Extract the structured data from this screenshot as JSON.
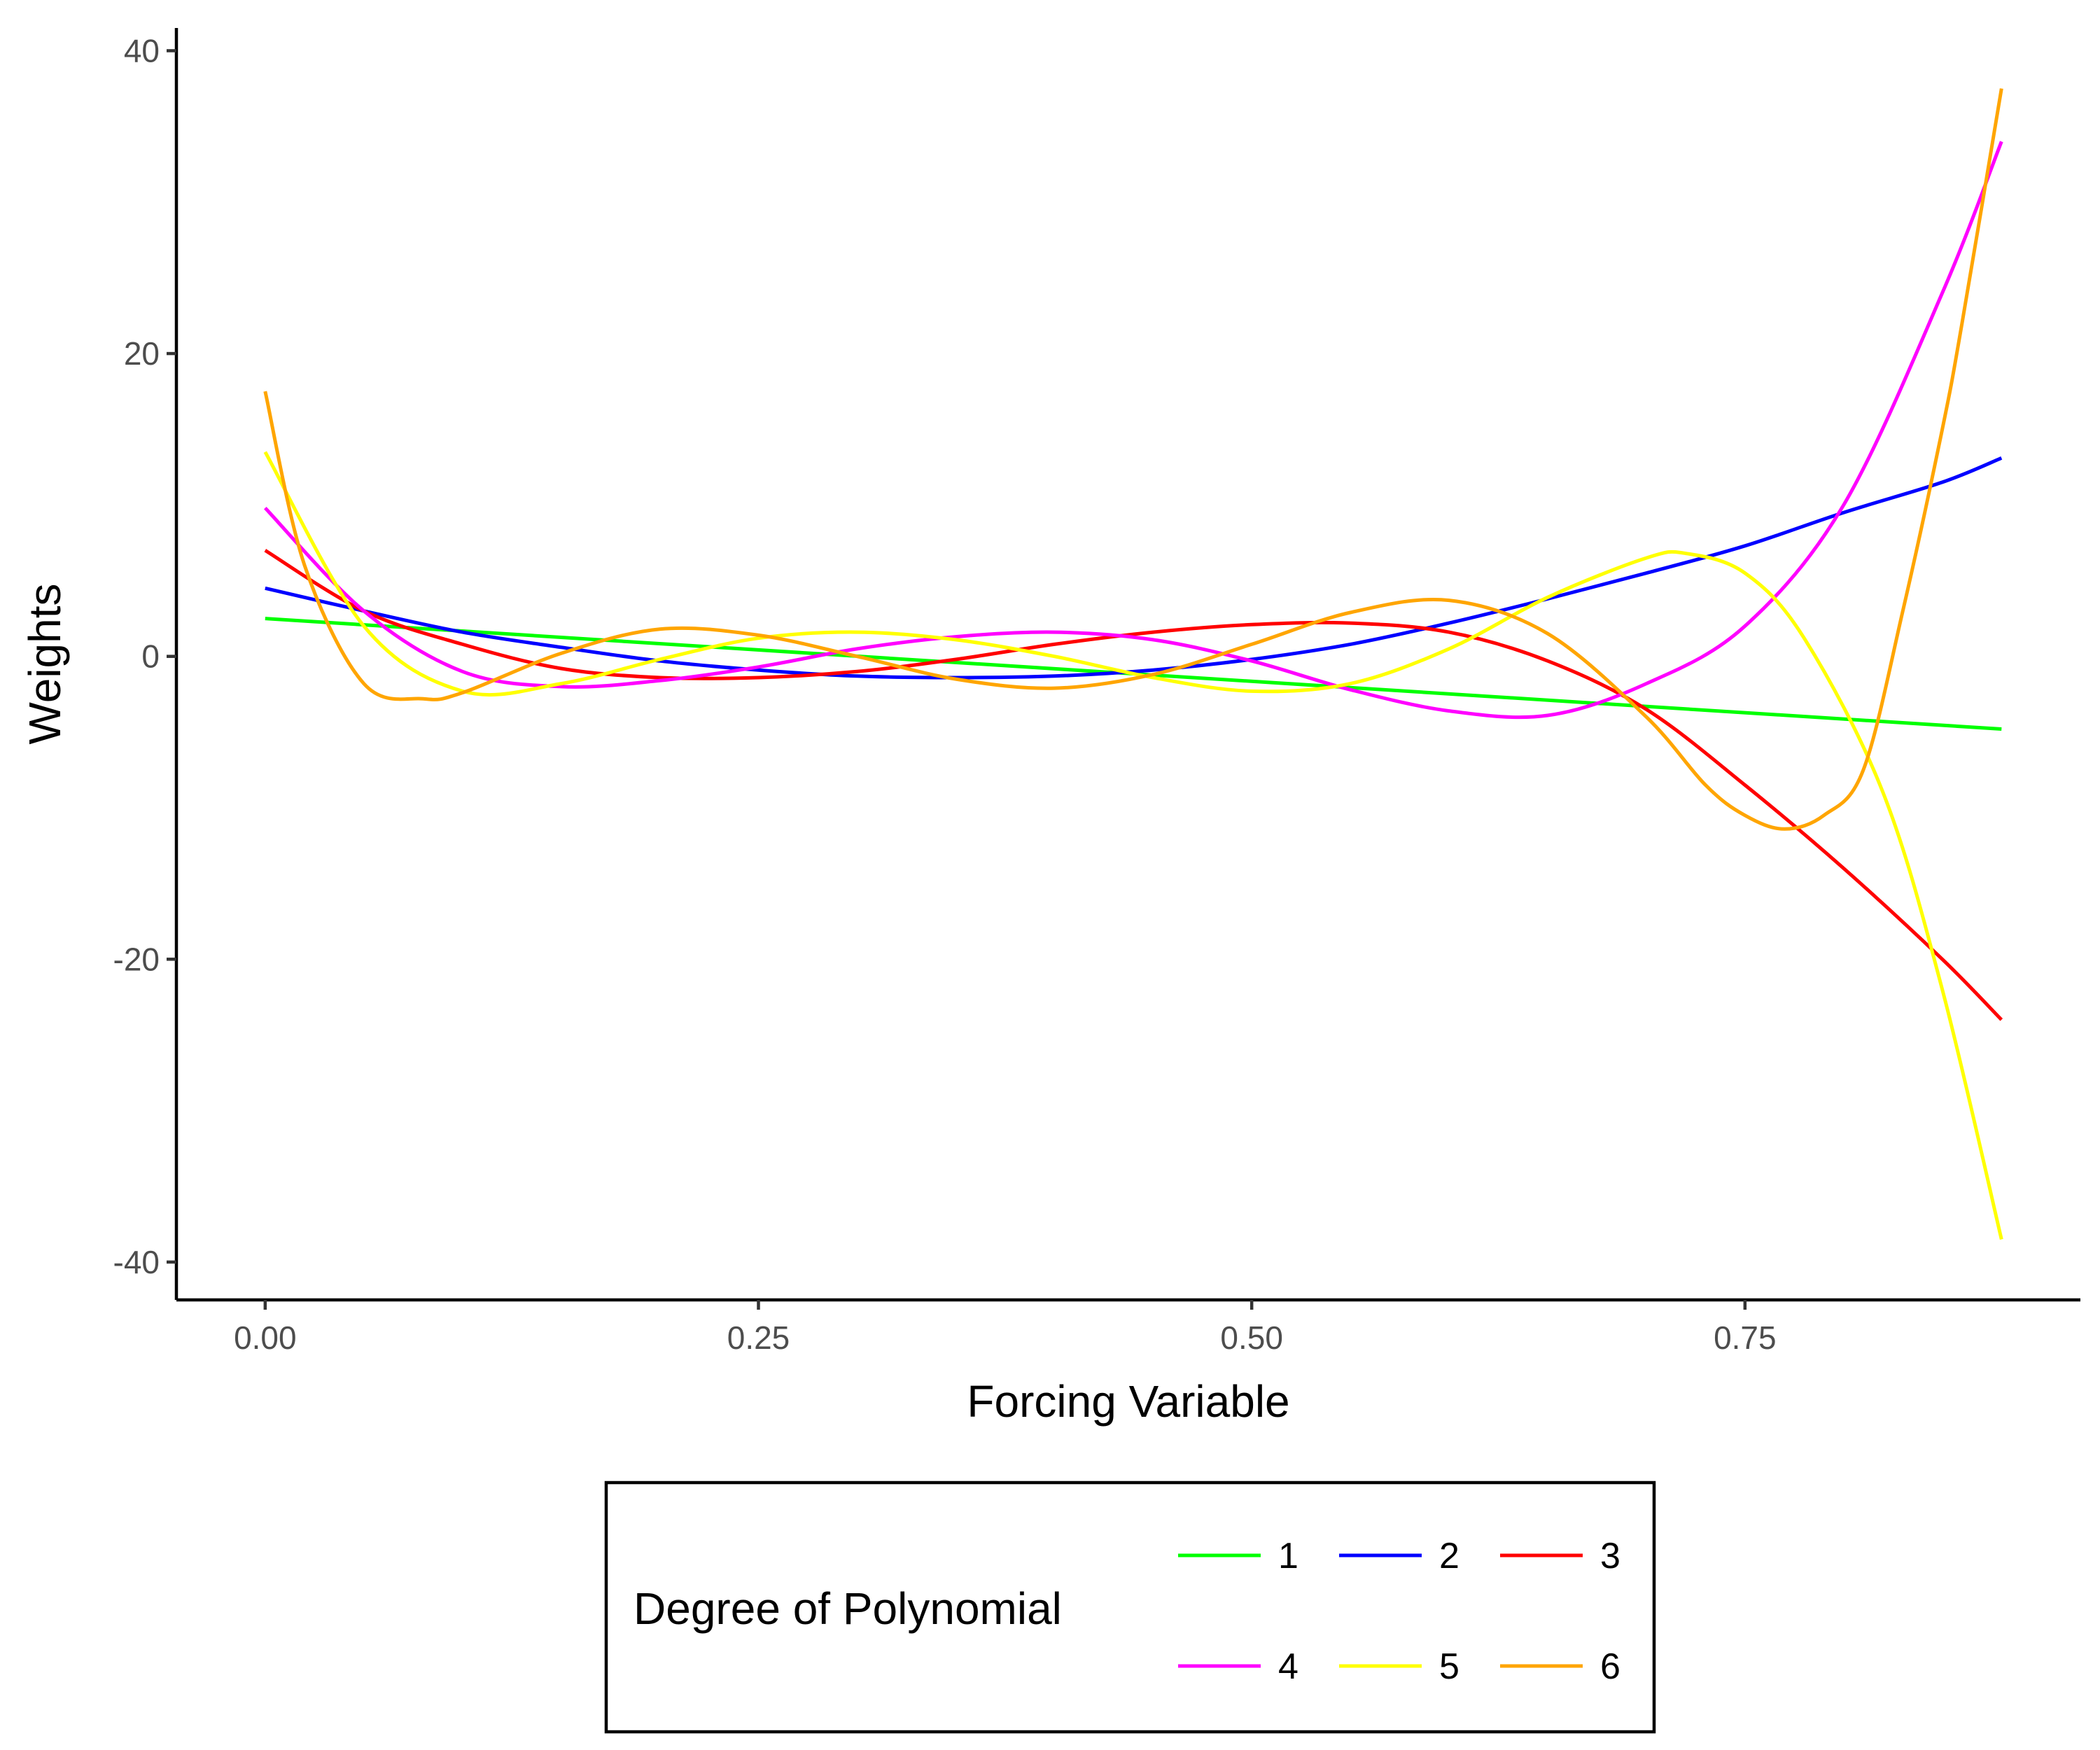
{
  "chart_data": {
    "type": "line",
    "title": "",
    "xlabel": "Forcing Variable",
    "ylabel": "Weights",
    "xlim": [
      -0.045,
      0.92
    ],
    "ylim": [
      -42.5,
      41.5
    ],
    "x_ticks": [
      0.0,
      0.25,
      0.5,
      0.75
    ],
    "x_tick_labels": [
      "0.00",
      "0.25",
      "0.50",
      "0.75"
    ],
    "y_ticks": [
      -40,
      -20,
      0,
      20,
      40
    ],
    "y_tick_labels": [
      "-40",
      "-20",
      "0",
      "20",
      "40"
    ],
    "grid": false,
    "legend": {
      "title": "Degree of Polynomial",
      "placement": "bottom",
      "entries": [
        "1",
        "2",
        "3",
        "4",
        "5",
        "6"
      ]
    },
    "colors": {
      "1": "#00ff00",
      "2": "#0000ff",
      "3": "#ff0000",
      "4": "#ff00ff",
      "5": "#ffff00",
      "6": "#ffa500"
    },
    "series": [
      {
        "name": "1",
        "x": [
          0.0,
          0.88
        ],
        "y": [
          2.5,
          -4.8
        ]
      },
      {
        "name": "2",
        "x": [
          0.0,
          0.05,
          0.1,
          0.15,
          0.2,
          0.25,
          0.3,
          0.35,
          0.4,
          0.45,
          0.5,
          0.55,
          0.6,
          0.65,
          0.7,
          0.75,
          0.8,
          0.85,
          0.88
        ],
        "y": [
          4.5,
          3.0,
          1.6,
          0.6,
          -0.3,
          -0.9,
          -1.3,
          -1.4,
          -1.3,
          -0.9,
          -0.2,
          0.8,
          2.2,
          3.8,
          5.5,
          7.3,
          9.5,
          11.5,
          13.1
        ]
      },
      {
        "name": "3",
        "x": [
          0.0,
          0.05,
          0.1,
          0.15,
          0.2,
          0.25,
          0.3,
          0.35,
          0.4,
          0.45,
          0.5,
          0.55,
          0.6,
          0.65,
          0.7,
          0.75,
          0.8,
          0.85,
          0.88
        ],
        "y": [
          7.0,
          3.0,
          0.8,
          -0.8,
          -1.4,
          -1.4,
          -1.0,
          -0.2,
          0.8,
          1.6,
          2.1,
          2.2,
          1.6,
          -0.3,
          -3.5,
          -8.5,
          -14.0,
          -20.0,
          -24.0
        ]
      },
      {
        "name": "4",
        "x": [
          0.0,
          0.05,
          0.1,
          0.15,
          0.2,
          0.25,
          0.3,
          0.35,
          0.4,
          0.45,
          0.5,
          0.55,
          0.6,
          0.65,
          0.7,
          0.75,
          0.8,
          0.85,
          0.88
        ],
        "y": [
          9.8,
          3.0,
          -1.0,
          -2.0,
          -1.6,
          -0.7,
          0.5,
          1.3,
          1.6,
          1.1,
          -0.3,
          -2.2,
          -3.6,
          -3.9,
          -1.8,
          2.0,
          10.0,
          24.0,
          34.0
        ]
      },
      {
        "name": "5",
        "x": [
          0.0,
          0.05,
          0.1,
          0.15,
          0.2,
          0.25,
          0.3,
          0.35,
          0.4,
          0.45,
          0.5,
          0.55,
          0.6,
          0.65,
          0.7,
          0.72,
          0.75,
          0.78,
          0.82,
          0.85,
          0.88
        ],
        "y": [
          13.5,
          2.0,
          -2.3,
          -1.8,
          -0.2,
          1.2,
          1.6,
          1.1,
          0.0,
          -1.4,
          -2.3,
          -1.8,
          0.5,
          3.9,
          6.5,
          6.8,
          5.5,
          1.2,
          -9.0,
          -22.0,
          -38.5
        ]
      },
      {
        "name": "6",
        "x": [
          0.0,
          0.02,
          0.05,
          0.08,
          0.1,
          0.15,
          0.2,
          0.25,
          0.3,
          0.35,
          0.4,
          0.45,
          0.5,
          0.55,
          0.6,
          0.65,
          0.7,
          0.73,
          0.75,
          0.77,
          0.79,
          0.81,
          0.83,
          0.85,
          0.86,
          0.88
        ],
        "y": [
          17.5,
          6.0,
          -1.8,
          -2.8,
          -2.4,
          0.2,
          1.8,
          1.4,
          0.0,
          -1.5,
          -2.1,
          -1.2,
          0.8,
          2.9,
          3.7,
          1.5,
          -4.0,
          -8.5,
          -10.5,
          -11.4,
          -10.5,
          -7.5,
          3.0,
          15.0,
          22.0,
          37.5
        ]
      }
    ]
  }
}
